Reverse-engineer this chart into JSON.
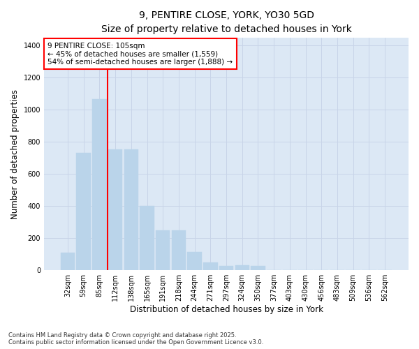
{
  "title_line1": "9, PENTIRE CLOSE, YORK, YO30 5GD",
  "title_line2": "Size of property relative to detached houses in York",
  "xlabel": "Distribution of detached houses by size in York",
  "ylabel": "Number of detached properties",
  "categories": [
    "32sqm",
    "59sqm",
    "85sqm",
    "112sqm",
    "138sqm",
    "165sqm",
    "191sqm",
    "218sqm",
    "244sqm",
    "271sqm",
    "297sqm",
    "324sqm",
    "350sqm",
    "377sqm",
    "403sqm",
    "430sqm",
    "456sqm",
    "483sqm",
    "509sqm",
    "536sqm",
    "562sqm"
  ],
  "values": [
    110,
    730,
    1065,
    752,
    752,
    400,
    248,
    248,
    115,
    50,
    28,
    30,
    25,
    0,
    0,
    0,
    0,
    0,
    0,
    0,
    0
  ],
  "bar_color": "#bad4ea",
  "bar_edge_color": "#bad4ea",
  "grid_color": "#c8d4e8",
  "background_color": "#dce8f5",
  "vline_x_index": 3,
  "vline_color": "red",
  "annotation_text": "9 PENTIRE CLOSE: 105sqm\n← 45% of detached houses are smaller (1,559)\n54% of semi-detached houses are larger (1,888) →",
  "ylim": [
    0,
    1450
  ],
  "yticks": [
    0,
    200,
    400,
    600,
    800,
    1000,
    1200,
    1400
  ],
  "footer_text": "Contains HM Land Registry data © Crown copyright and database right 2025.\nContains public sector information licensed under the Open Government Licence v3.0.",
  "title_fontsize": 10,
  "subtitle_fontsize": 9,
  "axis_label_fontsize": 8.5,
  "tick_fontsize": 7,
  "annotation_fontsize": 7.5,
  "footer_fontsize": 6
}
